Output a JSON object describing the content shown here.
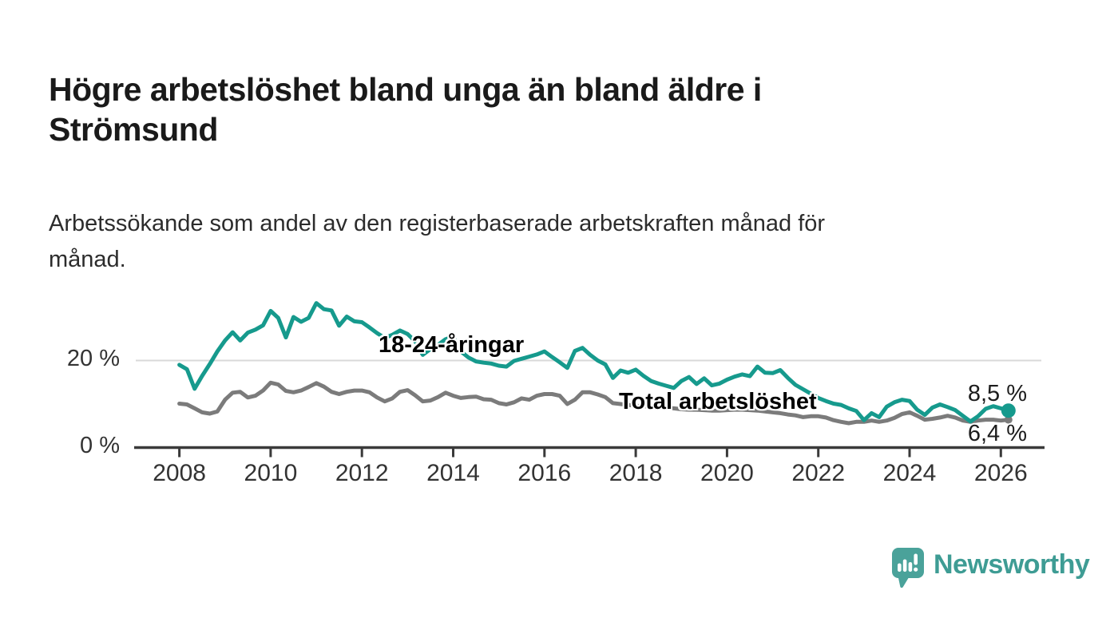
{
  "header": {
    "title_lines": [
      "Högre arbetslöshet bland unga än bland äldre i",
      "Strömsund"
    ],
    "subtitle_lines": [
      "Arbetssökande som andel av den registerbaserade arbetskraften månad för",
      "månad."
    ]
  },
  "chart_data": {
    "type": "line",
    "title": "Högre arbetslöshet bland unga än bland äldre i Strömsund",
    "subtitle": "Arbetssökande som andel av den registerbaserade arbetskraften månad för månad.",
    "unit": "%",
    "x_start": 2008.0,
    "x_step_years": 0.1666667,
    "frequency": "monthly (plotted every 2 months)",
    "xlim": [
      2007.05,
      2027.0
    ],
    "ylim": [
      0,
      36
    ],
    "grid": "horizontal gridline at 20% only",
    "legend_position": "inline labels on lines",
    "x_axis": {
      "ticks": [
        {
          "value": 2008,
          "label": "2008"
        },
        {
          "value": 2010,
          "label": "2010"
        },
        {
          "value": 2012,
          "label": "2012"
        },
        {
          "value": 2014,
          "label": "2014"
        },
        {
          "value": 2016,
          "label": "2016"
        },
        {
          "value": 2018,
          "label": "2018"
        },
        {
          "value": 2020,
          "label": "2020"
        },
        {
          "value": 2022,
          "label": "2022"
        },
        {
          "value": 2024,
          "label": "2024"
        },
        {
          "value": 2026,
          "label": "2026"
        }
      ]
    },
    "y_axis": {
      "ticks": [
        {
          "value": 0,
          "label": "0 %"
        },
        {
          "value": 20,
          "label": "20 %"
        }
      ]
    },
    "series": [
      {
        "name": "18-24-åringar",
        "color": "#169a8d",
        "end_value_label": "8,5 %",
        "values": [
          19.0,
          18.0,
          13.5,
          16.5,
          19.2,
          22.1,
          24.6,
          26.5,
          24.6,
          26.4,
          27.1,
          28.1,
          31.4,
          29.8,
          25.3,
          30.0,
          28.9,
          29.8,
          33.2,
          31.8,
          31.5,
          28.0,
          30.1,
          29.0,
          28.8,
          27.6,
          26.3,
          25.2,
          25.9,
          26.9,
          26.1,
          24.4,
          21.3,
          22.6,
          23.6,
          24.9,
          25.5,
          22.1,
          20.7,
          19.8,
          19.5,
          19.3,
          18.8,
          18.6,
          19.9,
          20.4,
          20.9,
          21.4,
          22.1,
          20.8,
          19.6,
          18.3,
          22.2,
          22.9,
          21.3,
          20.0,
          19.1,
          16.0,
          17.7,
          17.2,
          17.9,
          16.5,
          15.3,
          14.7,
          14.2,
          13.7,
          15.3,
          16.2,
          14.6,
          15.9,
          14.3,
          14.7,
          15.6,
          16.3,
          16.8,
          16.4,
          18.6,
          17.2,
          17.1,
          17.8,
          16.0,
          14.4,
          13.4,
          12.4,
          11.4,
          10.7,
          10.1,
          9.8,
          9.0,
          8.4,
          6.3,
          7.9,
          7.0,
          9.4,
          10.4,
          11.0,
          10.7,
          8.7,
          7.5,
          9.2,
          9.9,
          9.3,
          8.6,
          7.3,
          6.0,
          7.2,
          8.9,
          9.5,
          9.0,
          8.5
        ]
      },
      {
        "name": "Total arbetslöshet",
        "color": "#7b7b7b",
        "end_value_label": "6,4 %",
        "values": [
          10.1,
          9.9,
          9.0,
          8.1,
          7.8,
          8.3,
          11.0,
          12.6,
          12.8,
          11.5,
          11.9,
          13.1,
          14.9,
          14.5,
          13.0,
          12.7,
          13.1,
          13.9,
          14.8,
          14.0,
          12.8,
          12.3,
          12.8,
          13.1,
          13.1,
          12.7,
          11.5,
          10.6,
          11.3,
          12.8,
          13.2,
          12.0,
          10.6,
          10.8,
          11.6,
          12.6,
          11.9,
          11.4,
          11.6,
          11.7,
          11.1,
          11.0,
          10.2,
          9.9,
          10.4,
          11.3,
          11.0,
          11.9,
          12.3,
          12.3,
          11.9,
          10.0,
          11.0,
          12.7,
          12.7,
          12.2,
          11.6,
          10.2,
          10.0,
          9.8,
          9.6,
          9.5,
          9.3,
          9.2,
          9.1,
          9.0,
          8.8,
          8.7,
          8.7,
          8.6,
          8.5,
          8.5,
          8.6,
          8.7,
          8.7,
          8.6,
          8.5,
          8.3,
          8.1,
          7.9,
          7.6,
          7.4,
          7.0,
          7.2,
          7.2,
          6.9,
          6.3,
          5.9,
          5.6,
          5.9,
          5.9,
          6.2,
          5.9,
          6.2,
          6.8,
          7.7,
          8.1,
          7.3,
          6.4,
          6.6,
          6.9,
          7.3,
          6.9,
          6.2,
          5.9,
          6.2,
          6.4,
          6.4,
          6.2,
          6.4
        ]
      }
    ]
  },
  "logo": {
    "text": "Newsworthy",
    "icon": "newsworthy-speech-bubble-bar-chart-icon",
    "color": "#3e9c94",
    "icon_color": "#4aa29a"
  }
}
